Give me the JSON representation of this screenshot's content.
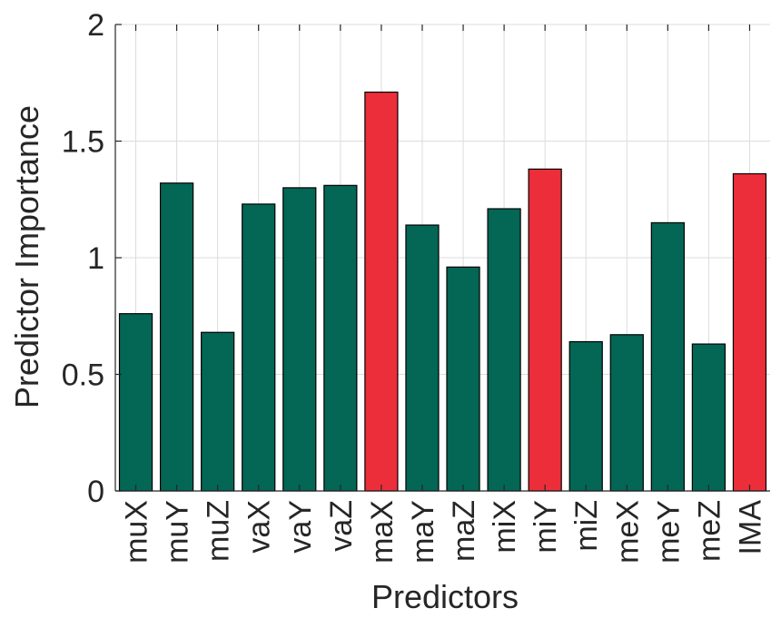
{
  "chart_data": {
    "type": "bar",
    "title": "",
    "xlabel": "Predictors",
    "ylabel": "Predictor Importance",
    "ylim": [
      0,
      2
    ],
    "yticks": [
      0,
      0.5,
      1,
      1.5,
      2
    ],
    "ytick_labels": [
      "0",
      "0.5",
      "1",
      "1.5",
      "2"
    ],
    "grid": true,
    "legend": "none",
    "categories": [
      "muX",
      "muY",
      "muZ",
      "vaX",
      "vaY",
      "vaZ",
      "maX",
      "maY",
      "maZ",
      "miX",
      "miY",
      "miZ",
      "meX",
      "meY",
      "meZ",
      "IMA"
    ],
    "values": [
      0.76,
      1.32,
      0.68,
      1.23,
      1.3,
      1.31,
      1.71,
      1.14,
      0.96,
      1.21,
      1.38,
      0.64,
      0.67,
      1.15,
      0.63,
      1.36
    ],
    "highlighted": [
      false,
      false,
      false,
      false,
      false,
      false,
      true,
      false,
      false,
      false,
      true,
      false,
      false,
      false,
      false,
      true
    ],
    "colors": {
      "default_bar": "#046654",
      "highlight_bar": "#ec2e3a",
      "bar_edge": "#000000",
      "grid": "#dcdcdc",
      "axis": "#262626"
    }
  }
}
